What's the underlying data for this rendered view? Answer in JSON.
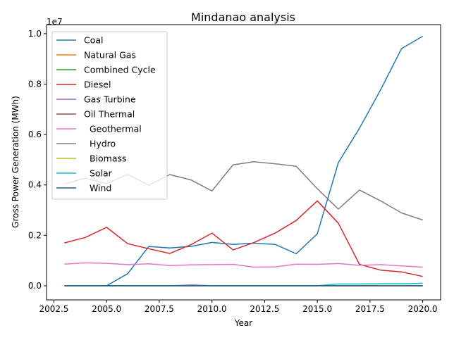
{
  "chart_data": {
    "type": "line",
    "title": "Mindanao analysis",
    "xlabel": "Year",
    "ylabel": "Gross Power Generation (MWh)",
    "y_offset_label": "1e7",
    "xlim": [
      2002.15,
      2020.85
    ],
    "ylim": [
      -560000,
      10360000
    ],
    "x_ticks": [
      2002.5,
      2005.0,
      2007.5,
      2010.0,
      2012.5,
      2015.0,
      2017.5,
      2020.0
    ],
    "x_tick_labels": [
      "2002.5",
      "2005.0",
      "2007.5",
      "2010.0",
      "2012.5",
      "2015.0",
      "2017.5",
      "2020.0"
    ],
    "y_ticks": [
      0,
      2000000,
      4000000,
      6000000,
      8000000,
      10000000
    ],
    "y_tick_labels": [
      "0.0",
      "0.2",
      "0.4",
      "0.6",
      "0.8",
      "1.0"
    ],
    "grid": false,
    "legend_position": "upper-left",
    "x": [
      2003,
      2004,
      2005,
      2006,
      2007,
      2008,
      2009,
      2010,
      2011,
      2012,
      2013,
      2014,
      2015,
      2016,
      2017,
      2018,
      2019,
      2020
    ],
    "series": [
      {
        "name": "Coal",
        "color": "#1f77b4",
        "values": [
          0,
          0,
          0,
          480000,
          1560000,
          1500000,
          1560000,
          1720000,
          1640000,
          1690000,
          1640000,
          1270000,
          2060000,
          4890000,
          6250000,
          7770000,
          9410000,
          9900000
        ]
      },
      {
        "name": "Natural Gas",
        "color": "#ff7f0e",
        "values": [
          0,
          0,
          0,
          0,
          0,
          0,
          0,
          0,
          0,
          0,
          0,
          0,
          0,
          0,
          0,
          0,
          0,
          0
        ]
      },
      {
        "name": "Combined Cycle",
        "color": "#2ca02c",
        "values": [
          0,
          0,
          0,
          0,
          0,
          0,
          0,
          0,
          0,
          0,
          0,
          0,
          0,
          0,
          0,
          0,
          0,
          0
        ]
      },
      {
        "name": "Diesel",
        "color": "#d62728",
        "values": [
          1700000,
          1920000,
          2320000,
          1670000,
          1470000,
          1280000,
          1630000,
          2090000,
          1420000,
          1720000,
          2090000,
          2590000,
          3370000,
          2480000,
          850000,
          620000,
          550000,
          370000
        ]
      },
      {
        "name": "Gas Turbine",
        "color": "#9467bd",
        "values": [
          0,
          0,
          0,
          0,
          0,
          0,
          30000,
          0,
          0,
          0,
          0,
          0,
          0,
          0,
          0,
          0,
          0,
          0
        ]
      },
      {
        "name": "Oil Thermal",
        "color": "#8c564b",
        "values": [
          0,
          0,
          0,
          0,
          0,
          0,
          0,
          0,
          0,
          0,
          0,
          0,
          0,
          0,
          0,
          0,
          0,
          0
        ]
      },
      {
        "name": "  Geothermal",
        "color": "#e377c2",
        "values": [
          860000,
          910000,
          890000,
          840000,
          870000,
          800000,
          830000,
          840000,
          850000,
          740000,
          750000,
          860000,
          850000,
          880000,
          810000,
          840000,
          790000,
          740000
        ]
      },
      {
        "name": "  Hydro",
        "color": "#7f7f7f",
        "values": [
          4040000,
          4270000,
          4050000,
          4420000,
          3990000,
          4410000,
          4200000,
          3760000,
          4800000,
          4920000,
          4840000,
          4740000,
          3850000,
          3040000,
          3800000,
          3370000,
          2890000,
          2610000
        ]
      },
      {
        "name": "  Biomass",
        "color": "#bcbd22",
        "values": [
          0,
          0,
          0,
          0,
          0,
          0,
          0,
          0,
          0,
          0,
          0,
          0,
          0,
          0,
          0,
          0,
          0,
          0
        ]
      },
      {
        "name": "  Solar",
        "color": "#17becf",
        "values": [
          0,
          0,
          0,
          0,
          0,
          0,
          0,
          0,
          0,
          0,
          0,
          0,
          0,
          70000,
          70000,
          80000,
          80000,
          100000
        ]
      },
      {
        "name": "  Wind",
        "color": "#1f5f8b",
        "values": [
          0,
          0,
          0,
          0,
          0,
          0,
          0,
          0,
          0,
          0,
          0,
          0,
          0,
          0,
          0,
          0,
          0,
          0
        ]
      }
    ]
  }
}
